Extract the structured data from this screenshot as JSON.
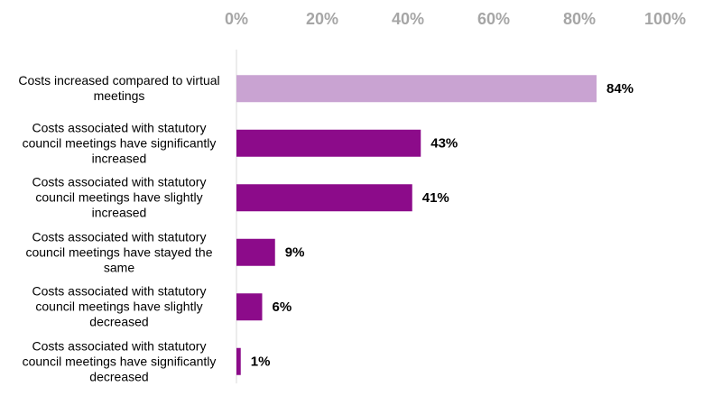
{
  "chart_data": {
    "type": "bar",
    "orientation": "horizontal",
    "categories": [
      "Costs increased compared to virtual meetings",
      "Costs associated with statutory council meetings have significantly increased",
      "Costs associated with statutory council meetings have slightly increased",
      "Costs associated with statutory council meetings have stayed the same",
      "Costs associated with statutory council meetings have slightly decreased",
      "Costs associated with statutory council meetings have significantly decreased"
    ],
    "values": [
      84,
      43,
      41,
      9,
      6,
      1
    ],
    "value_labels": [
      "84%",
      "43%",
      "41%",
      "9%",
      "6%",
      "1%"
    ],
    "colors": [
      "#c9a3d2",
      "#8c0b8a",
      "#8c0b8a",
      "#8c0b8a",
      "#8c0b8a",
      "#8c0b8a"
    ],
    "xlim": [
      0,
      100
    ],
    "xticks": [
      {
        "value": 0,
        "label": "0%"
      },
      {
        "value": 20,
        "label": "20%"
      },
      {
        "value": 40,
        "label": "40%"
      },
      {
        "value": 60,
        "label": "60%"
      },
      {
        "value": 80,
        "label": "80%"
      },
      {
        "value": 100,
        "label": "100%"
      }
    ]
  }
}
